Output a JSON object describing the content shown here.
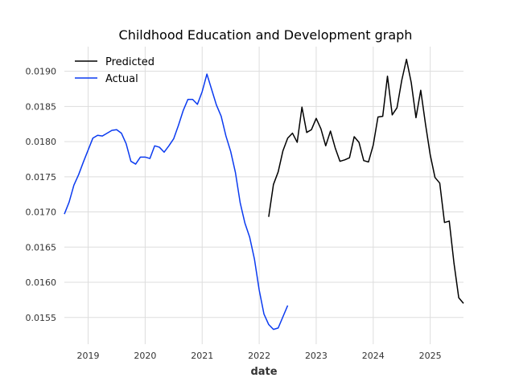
{
  "chart_data": {
    "type": "line",
    "title": "Childhood Education and Development graph",
    "xlabel": "date",
    "ylabel": "",
    "x_ticks": [
      "2019",
      "2020",
      "2021",
      "2022",
      "2023",
      "2024",
      "2025"
    ],
    "y_ticks": [
      "0.0155",
      "0.0160",
      "0.0165",
      "0.0170",
      "0.0175",
      "0.0180",
      "0.0185",
      "0.0190"
    ],
    "xlim": [
      "2018-08-01",
      "2025-08-01"
    ],
    "ylim": [
      0.01512,
      0.01935
    ],
    "grid": true,
    "legend": {
      "placement": "top-left"
    },
    "series": [
      {
        "name": "Predicted",
        "color": "#000000",
        "points": [
          [
            "2022-03-01",
            0.01693
          ],
          [
            "2022-04-01",
            0.01739
          ],
          [
            "2022-05-01",
            0.01757
          ],
          [
            "2022-06-01",
            0.01787
          ],
          [
            "2022-07-01",
            0.01805
          ],
          [
            "2022-08-01",
            0.01812
          ],
          [
            "2022-09-01",
            0.01799
          ],
          [
            "2022-10-01",
            0.01849
          ],
          [
            "2022-11-01",
            0.01813
          ],
          [
            "2022-12-01",
            0.01817
          ],
          [
            "2023-01-01",
            0.01833
          ],
          [
            "2023-02-01",
            0.01818
          ],
          [
            "2023-03-01",
            0.01794
          ],
          [
            "2023-04-01",
            0.01815
          ],
          [
            "2023-05-01",
            0.01791
          ],
          [
            "2023-06-01",
            0.01772
          ],
          [
            "2023-07-01",
            0.01774
          ],
          [
            "2023-08-01",
            0.01777
          ],
          [
            "2023-09-01",
            0.01807
          ],
          [
            "2023-10-01",
            0.01799
          ],
          [
            "2023-11-01",
            0.01773
          ],
          [
            "2023-12-01",
            0.01771
          ],
          [
            "2024-01-01",
            0.01795
          ],
          [
            "2024-02-01",
            0.01835
          ],
          [
            "2024-03-01",
            0.01836
          ],
          [
            "2024-04-01",
            0.01893
          ],
          [
            "2024-05-01",
            0.01838
          ],
          [
            "2024-06-01",
            0.01848
          ],
          [
            "2024-07-01",
            0.01887
          ],
          [
            "2024-08-01",
            0.01917
          ],
          [
            "2024-09-01",
            0.01884
          ],
          [
            "2024-10-01",
            0.01834
          ],
          [
            "2024-11-01",
            0.01873
          ],
          [
            "2024-12-01",
            0.01825
          ],
          [
            "2025-01-01",
            0.01781
          ],
          [
            "2025-02-01",
            0.01749
          ],
          [
            "2025-03-01",
            0.01741
          ],
          [
            "2025-04-01",
            0.01685
          ],
          [
            "2025-05-01",
            0.01687
          ],
          [
            "2025-06-01",
            0.01627
          ],
          [
            "2025-07-01",
            0.01578
          ],
          [
            "2025-08-01",
            0.0157
          ]
        ]
      },
      {
        "name": "Actual",
        "color": "#0b3bf0",
        "points": [
          [
            "2018-08-01",
            0.01697
          ],
          [
            "2018-09-01",
            0.01714
          ],
          [
            "2018-10-01",
            0.01738
          ],
          [
            "2018-11-01",
            0.01753
          ],
          [
            "2018-12-01",
            0.01771
          ],
          [
            "2019-01-01",
            0.01788
          ],
          [
            "2019-02-01",
            0.01805
          ],
          [
            "2019-03-01",
            0.01809
          ],
          [
            "2019-04-01",
            0.01808
          ],
          [
            "2019-05-01",
            0.01812
          ],
          [
            "2019-06-01",
            0.01816
          ],
          [
            "2019-07-01",
            0.01817
          ],
          [
            "2019-08-01",
            0.01812
          ],
          [
            "2019-09-01",
            0.01797
          ],
          [
            "2019-10-01",
            0.01772
          ],
          [
            "2019-11-01",
            0.01768
          ],
          [
            "2019-12-01",
            0.01778
          ],
          [
            "2020-01-01",
            0.01778
          ],
          [
            "2020-02-01",
            0.01776
          ],
          [
            "2020-03-01",
            0.01794
          ],
          [
            "2020-04-01",
            0.01792
          ],
          [
            "2020-05-01",
            0.01785
          ],
          [
            "2020-06-01",
            0.01794
          ],
          [
            "2020-07-01",
            0.01804
          ],
          [
            "2020-08-01",
            0.01823
          ],
          [
            "2020-09-01",
            0.01844
          ],
          [
            "2020-10-01",
            0.0186
          ],
          [
            "2020-11-01",
            0.0186
          ],
          [
            "2020-12-01",
            0.01853
          ],
          [
            "2021-01-01",
            0.01871
          ],
          [
            "2021-02-01",
            0.01896
          ],
          [
            "2021-03-01",
            0.01874
          ],
          [
            "2021-04-01",
            0.01852
          ],
          [
            "2021-05-01",
            0.01836
          ],
          [
            "2021-06-01",
            0.01808
          ],
          [
            "2021-07-01",
            0.01786
          ],
          [
            "2021-08-01",
            0.01756
          ],
          [
            "2021-09-01",
            0.01713
          ],
          [
            "2021-10-01",
            0.01684
          ],
          [
            "2021-11-01",
            0.01664
          ],
          [
            "2021-12-01",
            0.01633
          ],
          [
            "2022-01-01",
            0.01589
          ],
          [
            "2022-02-01",
            0.01555
          ],
          [
            "2022-03-01",
            0.0154
          ],
          [
            "2022-04-01",
            0.01533
          ],
          [
            "2022-05-01",
            0.01535
          ],
          [
            "2022-06-01",
            0.01551
          ],
          [
            "2022-07-01",
            0.01567
          ]
        ]
      }
    ]
  }
}
